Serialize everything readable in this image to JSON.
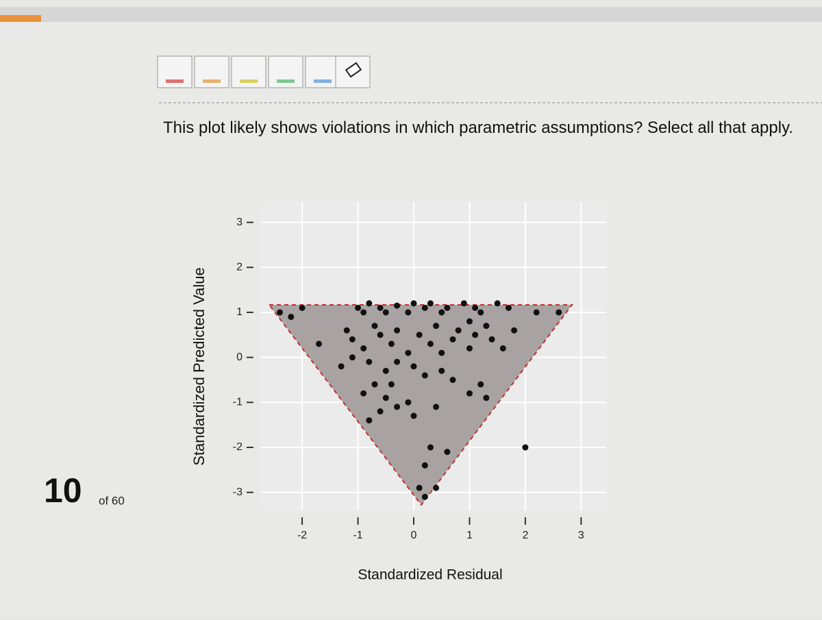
{
  "progress": {
    "current": "10",
    "total": "of 60"
  },
  "question": {
    "text": "This plot likely shows violations in which parametric assumptions? Select all that apply."
  },
  "chart_data": {
    "type": "scatter",
    "x_label": "Standardized Residual",
    "y_label": "Standardized Predicted Value",
    "color": "#111111",
    "grid": true,
    "xlim": [
      -2.75,
      3.45
    ],
    "ylim": [
      -3.4,
      3.45
    ],
    "xticks": [
      -2,
      -1,
      0,
      1,
      2,
      3
    ],
    "yticks": [
      3,
      2,
      1,
      0,
      -1,
      -2,
      -3
    ],
    "x": [
      -2.4,
      -2.2,
      -2.0,
      -1.0,
      -0.9,
      -0.8,
      -0.6,
      -0.5,
      -0.3,
      -0.1,
      0.0,
      0.2,
      0.3,
      0.5,
      0.6,
      0.9,
      1.1,
      1.2,
      1.5,
      1.7,
      2.2,
      2.6,
      1.8,
      -1.7,
      -1.2,
      -1.1,
      -0.9,
      -0.7,
      -0.6,
      -0.4,
      -0.3,
      -0.1,
      0.1,
      0.3,
      0.4,
      0.5,
      0.7,
      0.8,
      1.0,
      1.1,
      1.3,
      1.4,
      1.6,
      1.0,
      -1.3,
      -0.8,
      -0.5,
      -0.3,
      0.0,
      0.2,
      0.5,
      0.7,
      1.0,
      1.3,
      1.2,
      -0.9,
      -0.7,
      -0.5,
      -0.3,
      -0.1,
      0.0,
      -0.8,
      -0.6,
      0.3,
      0.6,
      0.2,
      2.0,
      0.1,
      0.4,
      0.2,
      -0.4,
      0.4,
      -1.1
    ],
    "y": [
      1.0,
      0.9,
      1.1,
      1.1,
      1.0,
      1.2,
      1.1,
      1.0,
      1.15,
      1.0,
      1.2,
      1.1,
      1.2,
      1.0,
      1.1,
      1.2,
      1.1,
      1.0,
      1.2,
      1.1,
      1.0,
      1.0,
      0.6,
      0.3,
      0.6,
      0.4,
      0.2,
      0.7,
      0.5,
      0.3,
      0.6,
      0.1,
      0.5,
      0.3,
      0.7,
      0.1,
      0.4,
      0.6,
      0.2,
      0.5,
      0.7,
      0.4,
      0.2,
      0.8,
      -0.2,
      -0.1,
      -0.3,
      -0.1,
      -0.2,
      -0.4,
      -0.3,
      -0.5,
      -0.8,
      -0.9,
      -0.6,
      -0.8,
      -0.6,
      -0.9,
      -1.1,
      -1.0,
      -1.3,
      -1.4,
      -1.2,
      -2.0,
      -2.1,
      -2.4,
      -2.0,
      -2.9,
      -2.9,
      -3.1,
      -0.6,
      -1.1,
      0.0
    ]
  }
}
